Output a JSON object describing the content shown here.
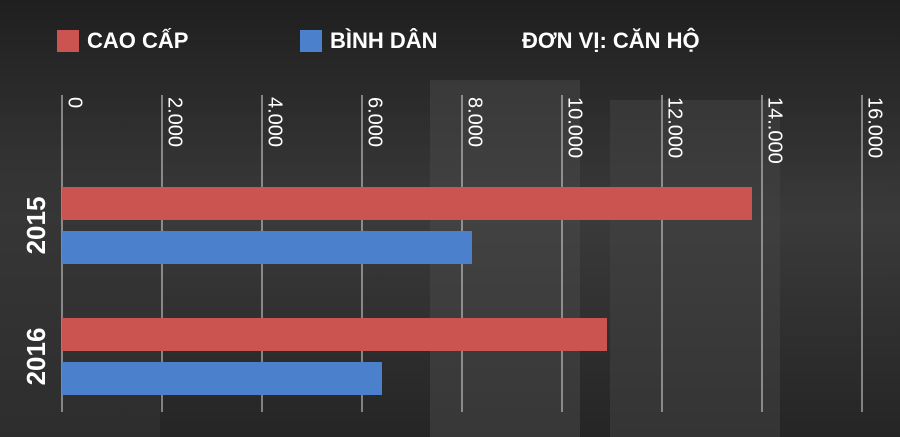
{
  "chart_data": {
    "type": "hbar",
    "annotation": "ĐƠN VỊ: CĂN HỘ",
    "categories": [
      "2015",
      "2016"
    ],
    "series": [
      {
        "name": "CAO CẤP",
        "color": "#cc5450",
        "values": [
          13800,
          10900
        ]
      },
      {
        "name": "BÌNH DÂN",
        "color": "#4b80cc",
        "values": [
          8200,
          6400
        ]
      }
    ],
    "xlim": [
      0,
      16000
    ],
    "xticks": [
      0,
      {
        "value": 2000,
        "label": "2.000"
      },
      {
        "value": 4000,
        "label": "4.000"
      },
      {
        "value": 6000,
        "label": "6.000"
      },
      {
        "value": 8000,
        "label": "8.000"
      },
      {
        "value": 10000,
        "label": "10.000"
      },
      {
        "value": 12000,
        "label": "12.000"
      },
      {
        "value": 14000,
        "label": "14..000"
      },
      {
        "value": 16000,
        "label": "16.000"
      }
    ],
    "grid": true
  }
}
